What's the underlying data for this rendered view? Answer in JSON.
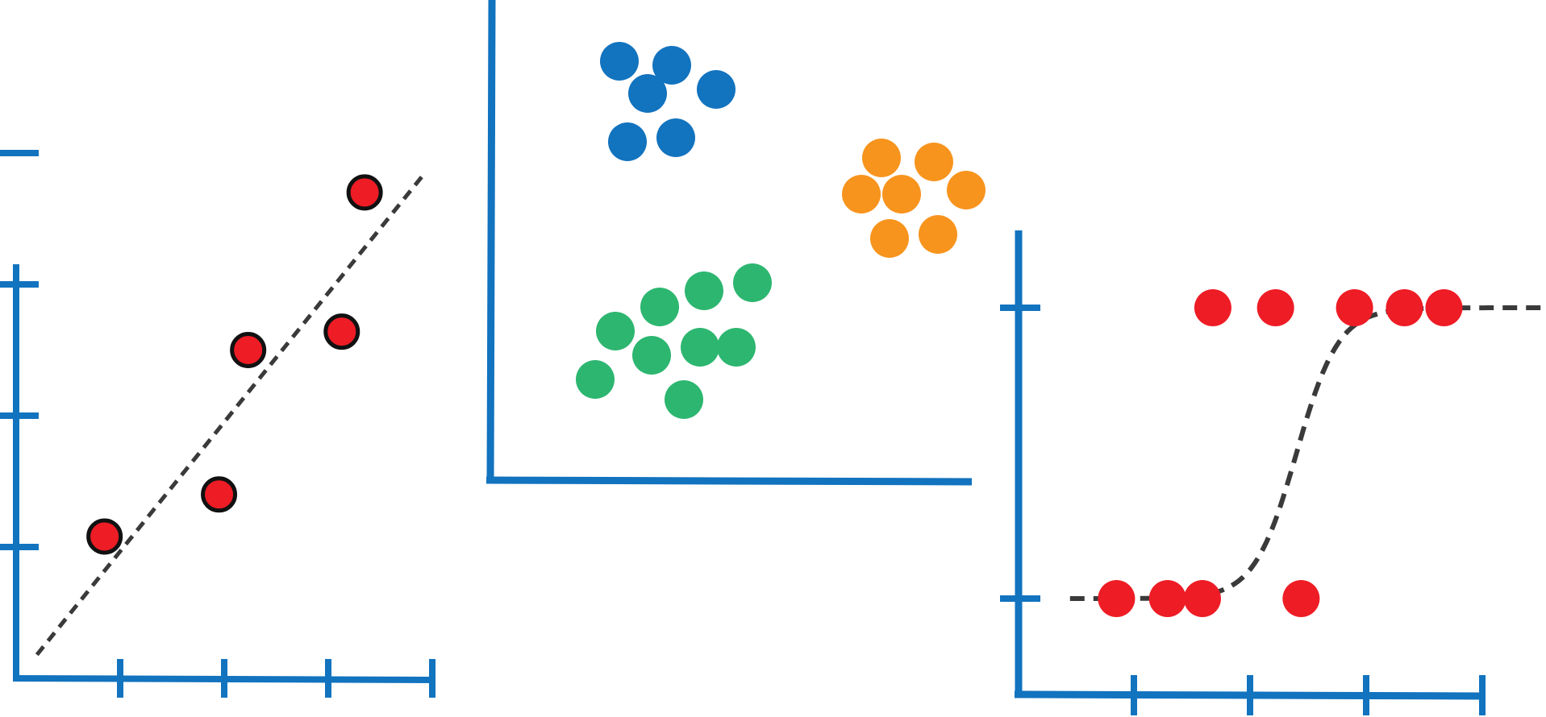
{
  "colors": {
    "axis": "#1273bf",
    "point_red": "#ee1c25",
    "outline": "#111111",
    "fit_line": "#3a3a3a",
    "cluster_blue": "#1273bf",
    "cluster_orange": "#f7941d",
    "cluster_green": "#2db670",
    "background": "#ffffff"
  },
  "chart_data": [
    {
      "type": "scatter",
      "title": "",
      "xlabel": "",
      "ylabel": "",
      "xlim": [
        0,
        4
      ],
      "ylim": [
        0,
        4
      ],
      "x_ticks": [
        1,
        2,
        3,
        4
      ],
      "y_ticks": [
        1,
        2,
        3,
        4
      ],
      "grid": false,
      "points": [
        {
          "x": 0.85,
          "y": 1.08
        },
        {
          "x": 1.95,
          "y": 1.4
        },
        {
          "x": 2.23,
          "y": 2.5
        },
        {
          "x": 3.13,
          "y": 2.64
        },
        {
          "x": 3.35,
          "y": 3.7
        }
      ],
      "fit_line": {
        "style": "dashed",
        "x": [
          0.2,
          3.9
        ],
        "y": [
          0.18,
          3.82
        ]
      }
    },
    {
      "type": "scatter",
      "title": "",
      "xlabel": "",
      "ylabel": "",
      "grid": false,
      "clusters": [
        {
          "color": "cluster_blue",
          "points": [
            [
              1.6,
              5.2
            ],
            [
              2.25,
              5.15
            ],
            [
              1.95,
              4.8
            ],
            [
              2.8,
              4.85
            ],
            [
              1.7,
              4.2
            ],
            [
              2.3,
              4.25
            ]
          ]
        },
        {
          "color": "cluster_orange",
          "points": [
            [
              4.85,
              4.0
            ],
            [
              5.5,
              3.95
            ],
            [
              4.6,
              3.55
            ],
            [
              5.1,
              3.55
            ],
            [
              5.9,
              3.6
            ],
            [
              4.95,
              3.0
            ],
            [
              5.55,
              3.05
            ]
          ]
        },
        {
          "color": "cluster_green",
          "points": [
            [
              2.1,
              2.15
            ],
            [
              2.65,
              2.35
            ],
            [
              3.25,
              2.45
            ],
            [
              1.55,
              1.85
            ],
            [
              2.0,
              1.55
            ],
            [
              2.6,
              1.65
            ],
            [
              3.05,
              1.65
            ],
            [
              1.3,
              1.25
            ],
            [
              2.4,
              1.0
            ]
          ]
        }
      ]
    },
    {
      "type": "scatter",
      "title": "",
      "xlabel": "",
      "ylabel": "",
      "xlim": [
        0,
        4
      ],
      "ylim": [
        0,
        1.3
      ],
      "x_ticks": [
        1,
        2,
        3,
        4
      ],
      "y_ticks": [
        0,
        1
      ],
      "grid": false,
      "points": [
        {
          "x": 0.85,
          "y": 0
        },
        {
          "x": 1.29,
          "y": 0
        },
        {
          "x": 1.59,
          "y": 0
        },
        {
          "x": 2.44,
          "y": 0
        },
        {
          "x": 1.68,
          "y": 1
        },
        {
          "x": 2.22,
          "y": 1
        },
        {
          "x": 2.9,
          "y": 1
        },
        {
          "x": 3.33,
          "y": 1
        },
        {
          "x": 3.67,
          "y": 1
        }
      ],
      "fit_curve": {
        "style": "dashed",
        "shape": "sigmoid",
        "center": 2.4,
        "steepness": 5.5,
        "x_range": [
          0.45,
          4.6
        ]
      }
    }
  ]
}
